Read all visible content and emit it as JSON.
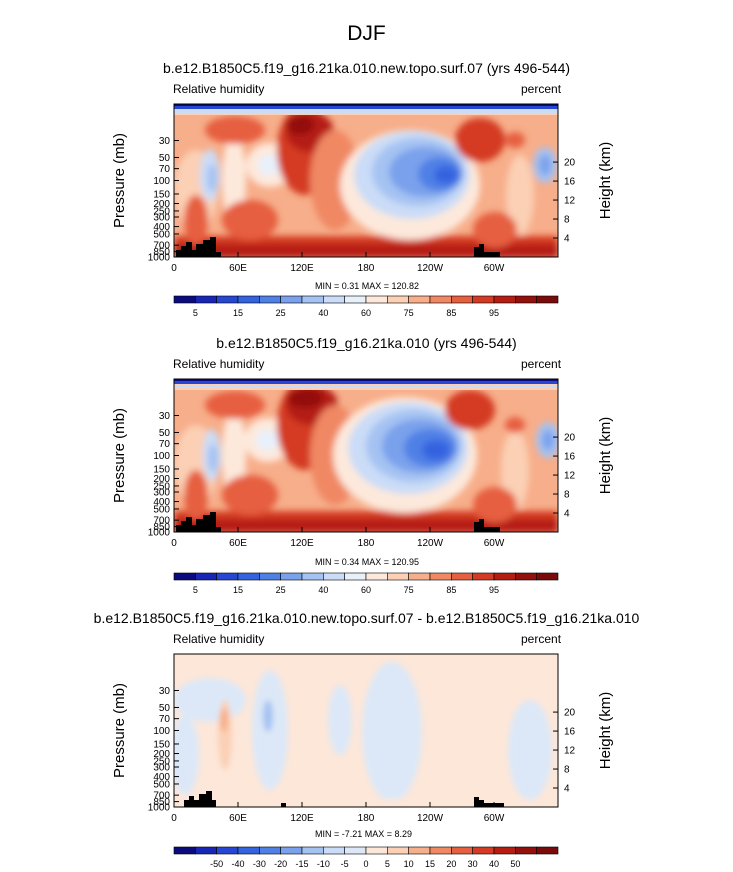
{
  "figure_title": "DJF",
  "colors": {
    "rh_scale": [
      "#0b0b7d",
      "#1726b7",
      "#2547d3",
      "#3463e0",
      "#4f80e6",
      "#7aa1ec",
      "#a4c2f2",
      "#cadcf7",
      "#e8f0fa",
      "#fde9dc",
      "#fbd0b5",
      "#f7ae8a",
      "#f08863",
      "#e65f3f",
      "#d43a24",
      "#b51c12",
      "#94100c",
      "#790b0b"
    ],
    "diff_scale": [
      "#0b0b7d",
      "#1726b7",
      "#2547d3",
      "#3463e0",
      "#4f80e6",
      "#7aa1ec",
      "#a4c2f2",
      "#cadcf7",
      "#dce8f8",
      "#fde7d9",
      "#fbd0b5",
      "#f7ae8a",
      "#f08863",
      "#e65f3f",
      "#d43a24",
      "#b51c12",
      "#94100c",
      "#790b0b"
    ],
    "topography": "#000000"
  },
  "chart_data": [
    {
      "type": "heatmap",
      "title": "b.e12.B1850C5.f19_g16.21ka.010.new.topo.surf.07 (yrs 496-544)",
      "variable": "Relative humidity",
      "units": "percent",
      "ylabel": "Pressure (mb)",
      "ylabel_right": "Height (km)",
      "x_ticks": [
        "0",
        "60E",
        "120E",
        "180",
        "120W",
        "60W"
      ],
      "y_ticks": [
        "1000",
        "850",
        "700",
        "500",
        "400",
        "300",
        "250",
        "200",
        "150",
        "100",
        "70",
        "50",
        "30"
      ],
      "y_ticks_right": [
        "4",
        "8",
        "12",
        "16",
        "20"
      ],
      "min_max_label": "MIN =   0.31  MAX = 120.82",
      "min": 0.31,
      "max": 120.82,
      "colorbar_labels": [
        "5",
        "15",
        "25",
        "40",
        "60",
        "75",
        "85",
        "95"
      ]
    },
    {
      "type": "heatmap",
      "title": "b.e12.B1850C5.f19_g16.21ka.010 (yrs 496-544)",
      "variable": "Relative humidity",
      "units": "percent",
      "ylabel": "Pressure (mb)",
      "ylabel_right": "Height (km)",
      "x_ticks": [
        "0",
        "60E",
        "120E",
        "180",
        "120W",
        "60W"
      ],
      "y_ticks": [
        "1000",
        "850",
        "700",
        "500",
        "400",
        "300",
        "250",
        "200",
        "150",
        "100",
        "70",
        "50",
        "30"
      ],
      "y_ticks_right": [
        "4",
        "8",
        "12",
        "16",
        "20"
      ],
      "min_max_label": "MIN =   0.34  MAX = 120.95",
      "min": 0.34,
      "max": 120.95,
      "colorbar_labels": [
        "5",
        "15",
        "25",
        "40",
        "60",
        "75",
        "85",
        "95"
      ]
    },
    {
      "type": "heatmap",
      "title": "b.e12.B1850C5.f19_g16.21ka.010.new.topo.surf.07 - b.e12.B1850C5.f19_g16.21ka.010",
      "variable": "Relative humidity",
      "units": "percent",
      "ylabel": "Pressure (mb)",
      "ylabel_right": "Height (km)",
      "x_ticks": [
        "0",
        "60E",
        "120E",
        "180",
        "120W",
        "60W"
      ],
      "y_ticks": [
        "1000",
        "850",
        "700",
        "500",
        "400",
        "300",
        "250",
        "200",
        "150",
        "100",
        "70",
        "50",
        "30"
      ],
      "y_ticks_right": [
        "4",
        "8",
        "12",
        "16",
        "20"
      ],
      "min_max_label": "MIN =  -7.21  MAX =   8.29",
      "min": -7.21,
      "max": 8.29,
      "colorbar_labels": [
        "-50",
        "-40",
        "-30",
        "-20",
        "-15",
        "-10",
        "-5",
        "0",
        "5",
        "10",
        "15",
        "20",
        "30",
        "40",
        "50"
      ]
    }
  ]
}
